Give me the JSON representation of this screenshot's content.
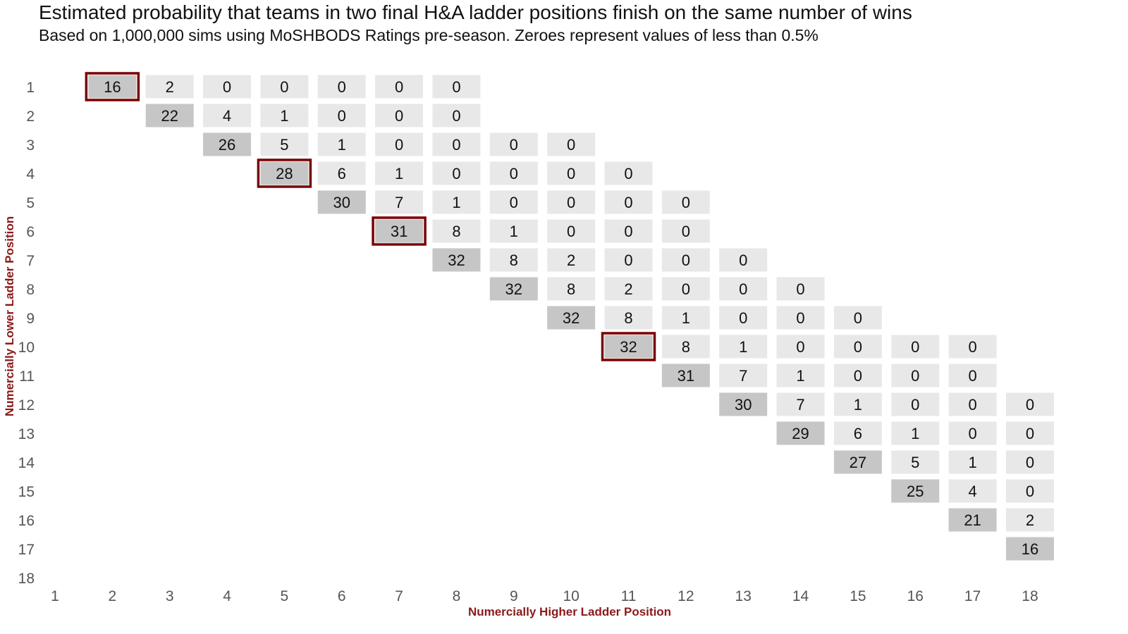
{
  "title": "Estimated probability that teams in two final H&A ladder positions finish on the same number of wins",
  "subtitle": "Based on 1,000,000 sims using MoSHBODS Ratings pre-season. Zeroes represent values of less than 0.5%",
  "colors": {
    "cell_light": "#e8e8e8",
    "cell_dark": "#c6c6c6",
    "highlight_border": "#7b0000",
    "axis_title": "#8b1a1a",
    "tick_text": "#555555"
  },
  "chart_data": {
    "type": "heatmap",
    "title": "Estimated probability that teams in two final H&A ladder positions finish on the same number of wins",
    "subtitle": "Based on 1,000,000 sims using MoSHBODS Ratings pre-season. Zeroes represent values of less than 0.5%",
    "xlabel": "Numercially Higher Ladder Position",
    "ylabel": "Numercially Lower Ladder Position",
    "x_ticks": [
      "1",
      "2",
      "3",
      "4",
      "5",
      "6",
      "7",
      "8",
      "9",
      "10",
      "11",
      "12",
      "13",
      "14",
      "15",
      "16",
      "17",
      "18"
    ],
    "y_ticks": [
      "1",
      "2",
      "3",
      "4",
      "5",
      "6",
      "7",
      "8",
      "9",
      "10",
      "11",
      "12",
      "13",
      "14",
      "15",
      "16",
      "17",
      "18"
    ],
    "rows": [
      {
        "y": 1,
        "x_start": 2,
        "values": [
          16,
          2,
          0,
          0,
          0,
          0,
          0
        ]
      },
      {
        "y": 2,
        "x_start": 3,
        "values": [
          22,
          4,
          1,
          0,
          0,
          0
        ]
      },
      {
        "y": 3,
        "x_start": 4,
        "values": [
          26,
          5,
          1,
          0,
          0,
          0,
          0
        ]
      },
      {
        "y": 4,
        "x_start": 5,
        "values": [
          28,
          6,
          1,
          0,
          0,
          0,
          0
        ]
      },
      {
        "y": 5,
        "x_start": 6,
        "values": [
          30,
          7,
          1,
          0,
          0,
          0,
          0
        ]
      },
      {
        "y": 6,
        "x_start": 7,
        "values": [
          31,
          8,
          1,
          0,
          0,
          0
        ]
      },
      {
        "y": 7,
        "x_start": 8,
        "values": [
          32,
          8,
          2,
          0,
          0,
          0
        ]
      },
      {
        "y": 8,
        "x_start": 9,
        "values": [
          32,
          8,
          2,
          0,
          0,
          0
        ]
      },
      {
        "y": 9,
        "x_start": 10,
        "values": [
          32,
          8,
          1,
          0,
          0,
          0
        ]
      },
      {
        "y": 10,
        "x_start": 11,
        "values": [
          32,
          8,
          1,
          0,
          0,
          0,
          0
        ]
      },
      {
        "y": 11,
        "x_start": 12,
        "values": [
          31,
          7,
          1,
          0,
          0,
          0
        ]
      },
      {
        "y": 12,
        "x_start": 13,
        "values": [
          30,
          7,
          1,
          0,
          0,
          0
        ]
      },
      {
        "y": 13,
        "x_start": 14,
        "values": [
          29,
          6,
          1,
          0,
          0
        ]
      },
      {
        "y": 14,
        "x_start": 15,
        "values": [
          27,
          5,
          1,
          0
        ]
      },
      {
        "y": 15,
        "x_start": 16,
        "values": [
          25,
          4,
          0
        ]
      },
      {
        "y": 16,
        "x_start": 17,
        "values": [
          21,
          2
        ]
      },
      {
        "y": 17,
        "x_start": 18,
        "values": [
          16
        ]
      }
    ],
    "highlighted_cells": [
      [
        2,
        1
      ],
      [
        5,
        4
      ],
      [
        7,
        6
      ],
      [
        11,
        10
      ]
    ],
    "grid": false,
    "legend": "none"
  }
}
